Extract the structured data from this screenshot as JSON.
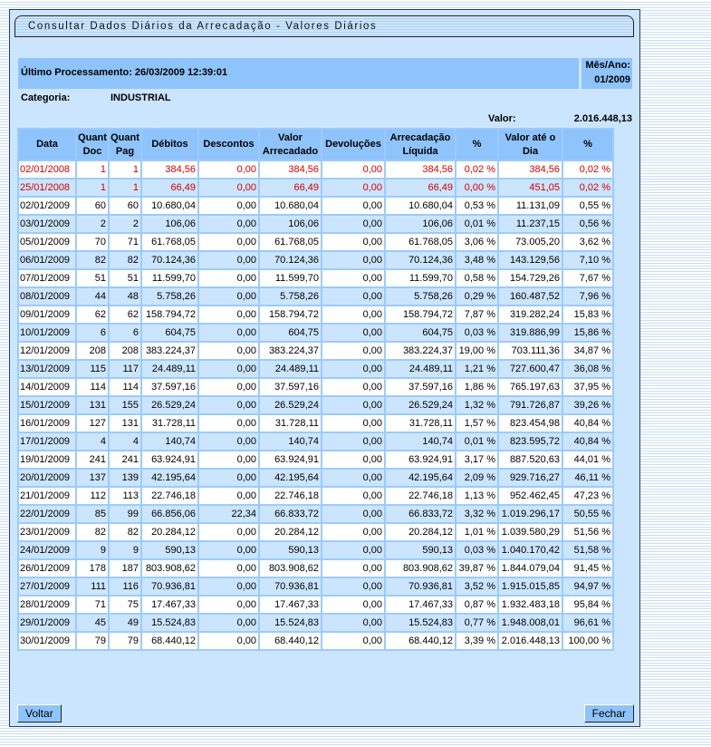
{
  "title": "Consultar Dados Diários da Arrecadação - Valores Diários",
  "ultimo_processamento": "Último Processamento: 26/03/2009 12:39:01",
  "mes_ano_label": "Mês/Ano:",
  "mes_ano_value": "01/2009",
  "categoria_label": "Categoria:",
  "categoria_value": "INDUSTRIAL",
  "valor_label": "Valor:",
  "valor_value": "2.016.448,13",
  "headers": [
    "Data",
    "Quant Doc",
    "Quant Pag",
    "Débitos",
    "Descontos",
    "Valor Arrecadado",
    "Devoluções",
    "Arrecadação Líquida",
    "%",
    "Valor até o Dia",
    "%"
  ],
  "highlight_color": "#d00000",
  "rows": [
    {
      "highlight": true,
      "cells": [
        "02/01/2008",
        "1",
        "1",
        "384,56",
        "0,00",
        "384,56",
        "0,00",
        "384,56",
        "0,02 %",
        "384,56",
        "0,02 %"
      ]
    },
    {
      "highlight": true,
      "cells": [
        "25/01/2008",
        "1",
        "1",
        "66,49",
        "0,00",
        "66,49",
        "0,00",
        "66,49",
        "0,00 %",
        "451,05",
        "0,02 %"
      ]
    },
    {
      "cells": [
        "02/01/2009",
        "60",
        "60",
        "10.680,04",
        "0,00",
        "10.680,04",
        "0,00",
        "10.680,04",
        "0,53 %",
        "11.131,09",
        "0,55 %"
      ]
    },
    {
      "cells": [
        "03/01/2009",
        "2",
        "2",
        "106,06",
        "0,00",
        "106,06",
        "0,00",
        "106,06",
        "0,01 %",
        "11.237,15",
        "0,56 %"
      ]
    },
    {
      "cells": [
        "05/01/2009",
        "70",
        "71",
        "61.768,05",
        "0,00",
        "61.768,05",
        "0,00",
        "61.768,05",
        "3,06 %",
        "73.005,20",
        "3,62 %"
      ]
    },
    {
      "cells": [
        "06/01/2009",
        "82",
        "82",
        "70.124,36",
        "0,00",
        "70.124,36",
        "0,00",
        "70.124,36",
        "3,48 %",
        "143.129,56",
        "7,10 %"
      ]
    },
    {
      "cells": [
        "07/01/2009",
        "51",
        "51",
        "11.599,70",
        "0,00",
        "11.599,70",
        "0,00",
        "11.599,70",
        "0,58 %",
        "154.729,26",
        "7,67 %"
      ]
    },
    {
      "cells": [
        "08/01/2009",
        "44",
        "48",
        "5.758,26",
        "0,00",
        "5.758,26",
        "0,00",
        "5.758,26",
        "0,29 %",
        "160.487,52",
        "7,96 %"
      ]
    },
    {
      "cells": [
        "09/01/2009",
        "62",
        "62",
        "158.794,72",
        "0,00",
        "158.794,72",
        "0,00",
        "158.794,72",
        "7,87 %",
        "319.282,24",
        "15,83 %"
      ]
    },
    {
      "cells": [
        "10/01/2009",
        "6",
        "6",
        "604,75",
        "0,00",
        "604,75",
        "0,00",
        "604,75",
        "0,03 %",
        "319.886,99",
        "15,86 %"
      ]
    },
    {
      "cells": [
        "12/01/2009",
        "208",
        "208",
        "383.224,37",
        "0,00",
        "383.224,37",
        "0,00",
        "383.224,37",
        "19,00 %",
        "703.111,36",
        "34,87 %"
      ]
    },
    {
      "cells": [
        "13/01/2009",
        "115",
        "117",
        "24.489,11",
        "0,00",
        "24.489,11",
        "0,00",
        "24.489,11",
        "1,21 %",
        "727.600,47",
        "36,08 %"
      ]
    },
    {
      "cells": [
        "14/01/2009",
        "114",
        "114",
        "37.597,16",
        "0,00",
        "37.597,16",
        "0,00",
        "37.597,16",
        "1,86 %",
        "765.197,63",
        "37,95 %"
      ]
    },
    {
      "cells": [
        "15/01/2009",
        "131",
        "155",
        "26.529,24",
        "0,00",
        "26.529,24",
        "0,00",
        "26.529,24",
        "1,32 %",
        "791.726,87",
        "39,26 %"
      ]
    },
    {
      "cells": [
        "16/01/2009",
        "127",
        "131",
        "31.728,11",
        "0,00",
        "31.728,11",
        "0,00",
        "31.728,11",
        "1,57 %",
        "823.454,98",
        "40,84 %"
      ]
    },
    {
      "cells": [
        "17/01/2009",
        "4",
        "4",
        "140,74",
        "0,00",
        "140,74",
        "0,00",
        "140,74",
        "0,01 %",
        "823.595,72",
        "40,84 %"
      ]
    },
    {
      "cells": [
        "19/01/2009",
        "241",
        "241",
        "63.924,91",
        "0,00",
        "63.924,91",
        "0,00",
        "63.924,91",
        "3,17 %",
        "887.520,63",
        "44,01 %"
      ]
    },
    {
      "cells": [
        "20/01/2009",
        "137",
        "139",
        "42.195,64",
        "0,00",
        "42.195,64",
        "0,00",
        "42.195,64",
        "2,09 %",
        "929.716,27",
        "46,11 %"
      ]
    },
    {
      "cells": [
        "21/01/2009",
        "112",
        "113",
        "22.746,18",
        "0,00",
        "22.746,18",
        "0,00",
        "22.746,18",
        "1,13 %",
        "952.462,45",
        "47,23 %"
      ]
    },
    {
      "cells": [
        "22/01/2009",
        "85",
        "99",
        "66.856,06",
        "22,34",
        "66.833,72",
        "0,00",
        "66.833,72",
        "3,32 %",
        "1.019.296,17",
        "50,55 %"
      ]
    },
    {
      "cells": [
        "23/01/2009",
        "82",
        "82",
        "20.284,12",
        "0,00",
        "20.284,12",
        "0,00",
        "20.284,12",
        "1,01 %",
        "1.039.580,29",
        "51,56 %"
      ]
    },
    {
      "cells": [
        "24/01/2009",
        "9",
        "9",
        "590,13",
        "0,00",
        "590,13",
        "0,00",
        "590,13",
        "0,03 %",
        "1.040.170,42",
        "51,58 %"
      ]
    },
    {
      "cells": [
        "26/01/2009",
        "178",
        "187",
        "803.908,62",
        "0,00",
        "803.908,62",
        "0,00",
        "803.908,62",
        "39,87 %",
        "1.844.079,04",
        "91,45 %"
      ]
    },
    {
      "cells": [
        "27/01/2009",
        "111",
        "116",
        "70.936,81",
        "0,00",
        "70.936,81",
        "0,00",
        "70.936,81",
        "3,52 %",
        "1.915.015,85",
        "94,97 %"
      ]
    },
    {
      "cells": [
        "28/01/2009",
        "71",
        "75",
        "17.467,33",
        "0,00",
        "17.467,33",
        "0,00",
        "17.467,33",
        "0,87 %",
        "1.932.483,18",
        "95,84 %"
      ]
    },
    {
      "cells": [
        "29/01/2009",
        "45",
        "49",
        "15.524,83",
        "0,00",
        "15.524,83",
        "0,00",
        "15.524,83",
        "0,77 %",
        "1.948.008,01",
        "96,61 %"
      ]
    },
    {
      "cells": [
        "30/01/2009",
        "79",
        "79",
        "68.440,12",
        "0,00",
        "68.440,12",
        "0,00",
        "68.440,12",
        "3,39 %",
        "2.016.448,13",
        "100,00 %"
      ]
    }
  ],
  "buttons": {
    "voltar": "Voltar",
    "fechar": "Fechar"
  }
}
